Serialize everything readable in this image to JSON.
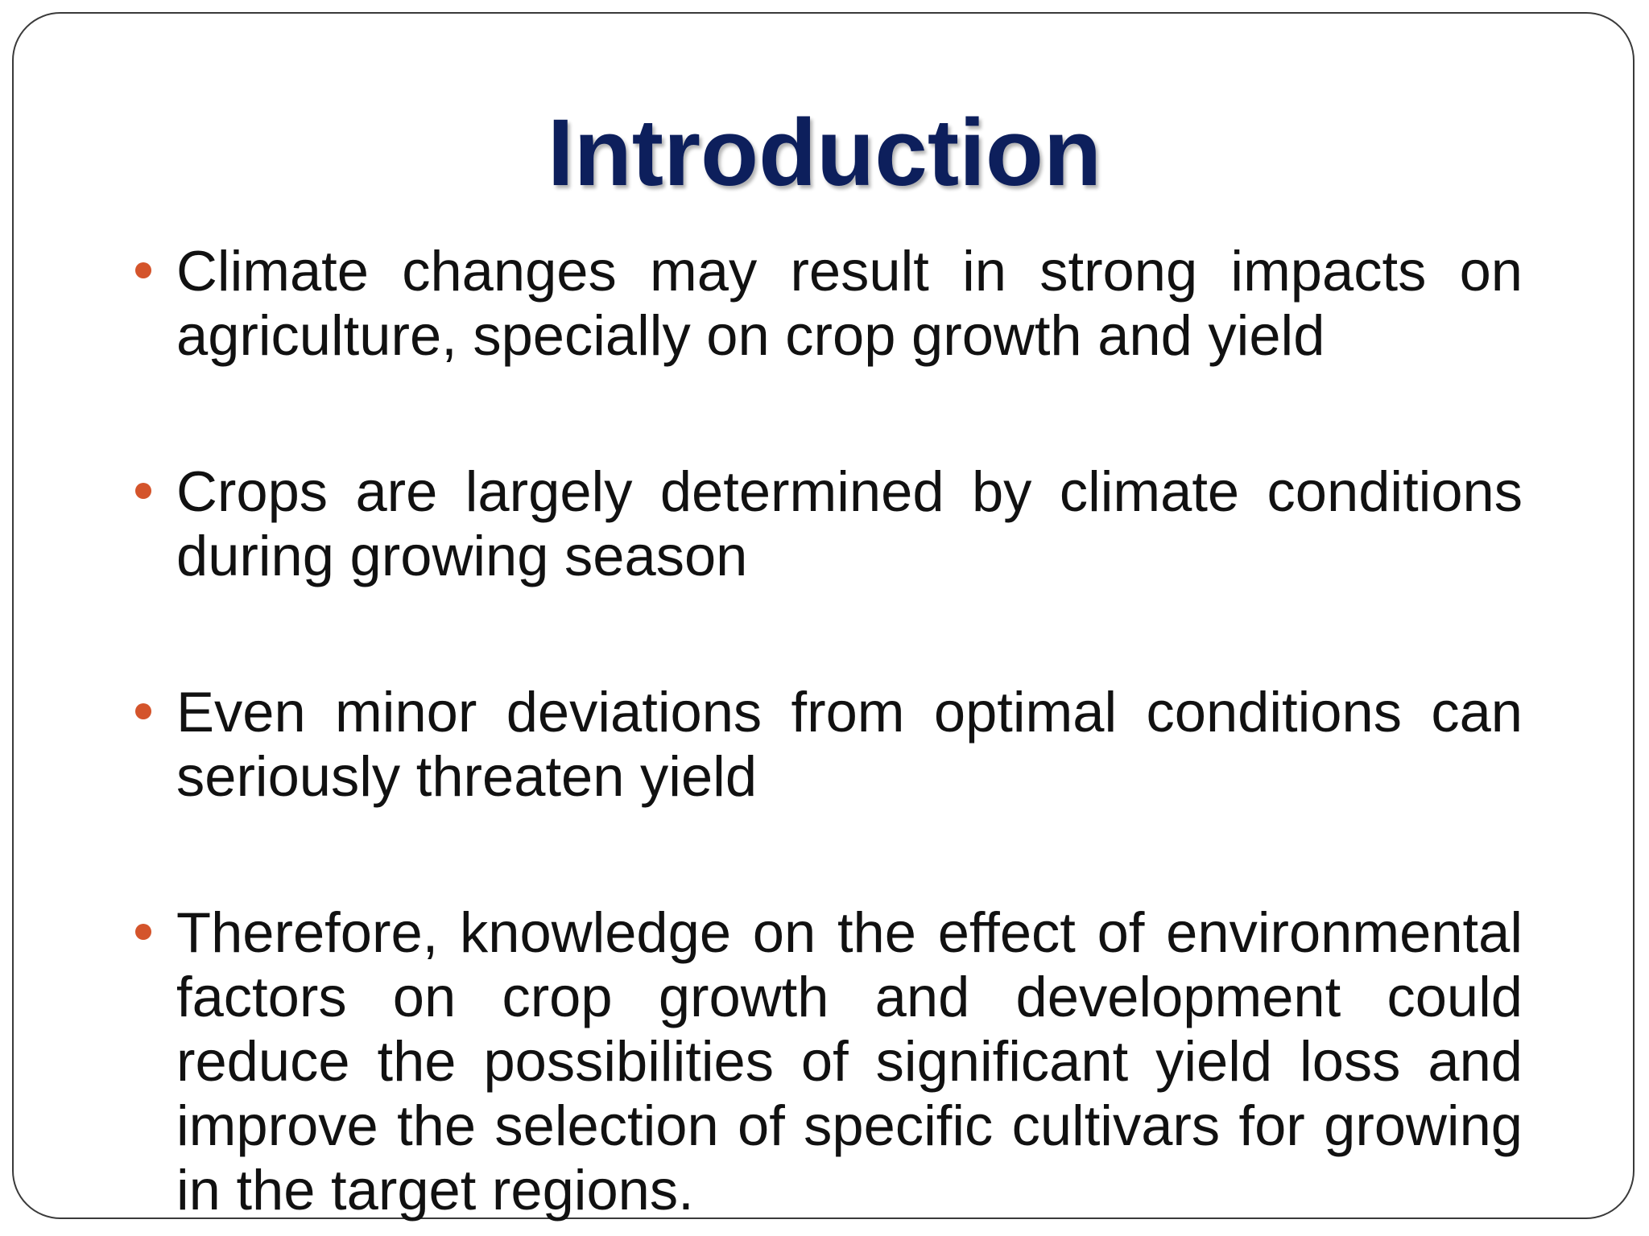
{
  "title": "Introduction",
  "bullets": [
    "Climate changes may result in strong impacts on agriculture, specially on crop growth and yield",
    "Crops are largely determined by climate conditions during growing season",
    "Even minor deviations from optimal conditions can seriously threaten yield",
    "Therefore, knowledge on the effect of environmental factors on crop growth and development could reduce the possibilities of significant yield loss and improve the selection of specific cultivars for growing in the target regions."
  ]
}
